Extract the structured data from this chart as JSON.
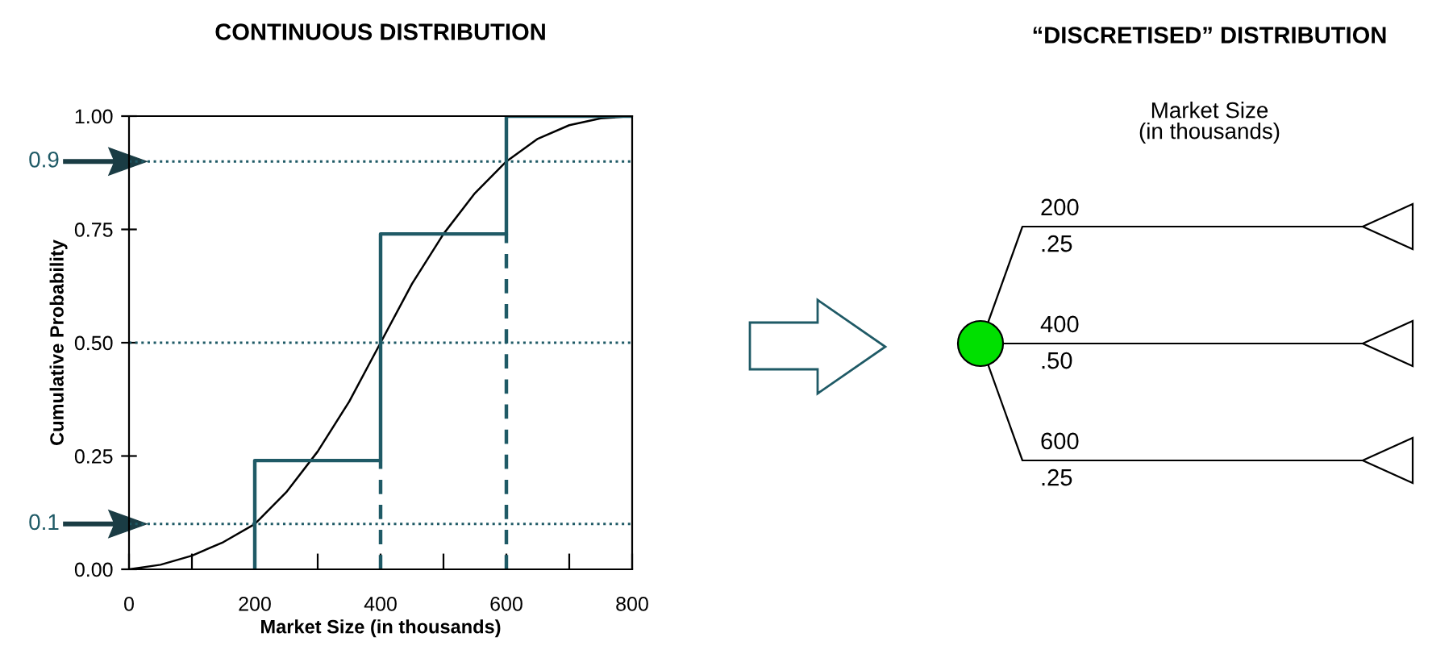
{
  "chart_data": [
    {
      "type": "line",
      "title": "CONTINUOUS DISTRIBUTION",
      "xlabel": "Market Size (in thousands)",
      "ylabel": "Cumulative Probability",
      "xlim": [
        0,
        800
      ],
      "ylim": [
        0,
        1
      ],
      "xticks": [
        0,
        {
          "value": 100,
          "label": null
        },
        200,
        {
          "value": 300,
          "label": null
        },
        400,
        {
          "value": 500,
          "label": null
        },
        600,
        {
          "value": 700,
          "label": null
        },
        800
      ],
      "yticks": [
        {
          "value": 0,
          "label": "0.00"
        },
        {
          "value": 0.25,
          "label": "0.25"
        },
        {
          "value": 0.5,
          "label": "0.50"
        },
        {
          "value": 0.75,
          "label": "0.75"
        },
        {
          "value": 1,
          "label": "1.00"
        }
      ],
      "series": [
        {
          "type": "line",
          "color": "#000000",
          "x": [
            0,
            50,
            100,
            150,
            200,
            250,
            300,
            350,
            400,
            450,
            500,
            550,
            600,
            650,
            700,
            750,
            800
          ],
          "values": [
            0,
            0.01,
            0.03,
            0.06,
            0.1,
            0.17,
            0.26,
            0.37,
            0.5,
            0.63,
            0.74,
            0.83,
            0.9,
            0.95,
            0.98,
            0.995,
            1
          ]
        },
        {
          "type": "step",
          "color": "#1f5a66",
          "x": [
            200,
            200,
            400,
            600,
            800
          ],
          "values": [
            0,
            0.24,
            0.74,
            1,
            1
          ]
        },
        {
          "type": "line",
          "color": "#1f5a66",
          "line_style": "dashed",
          "x": [
            400,
            400
          ],
          "values": [
            0,
            0.24
          ]
        },
        {
          "type": "line",
          "color": "#1f5a66",
          "line_style": "dashed",
          "x": [
            600,
            600
          ],
          "values": [
            0,
            0.74
          ]
        }
      ],
      "ref_lines": [
        {
          "axis": "y",
          "value": 0.9,
          "label": "0.9",
          "color": "#1f5a66",
          "line_style": "dotted"
        },
        {
          "axis": "y",
          "value": 0.5,
          "label": null,
          "color": "#1f5a66",
          "line_style": "dotted"
        },
        {
          "axis": "y",
          "value": 0.1,
          "label": "0.1",
          "color": "#1f5a66",
          "line_style": "dotted"
        }
      ]
    },
    {
      "type": "other",
      "title": "“DISCRETISED” DISTRIBUTION",
      "subtitle": "Market Size\n(in thousands)",
      "categories": [
        "200",
        "400",
        "600"
      ],
      "value_labels": [
        ".25",
        ".50",
        ".25"
      ],
      "color": "#00e000"
    }
  ]
}
